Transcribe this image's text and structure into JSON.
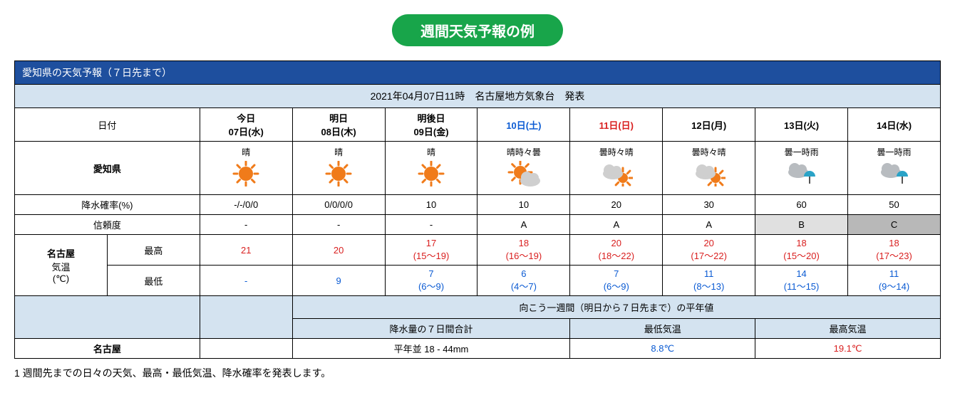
{
  "colors": {
    "title_bg": "#18a54a",
    "table_header_bg": "#1e4f9e",
    "light_bg": "#d4e3f0",
    "sat": "#0b5bd3",
    "sun_red": "#d92020",
    "high_red": "#d92020",
    "low_blue": "#0b5bd3",
    "conf_b_bg": "#e0e0e0",
    "conf_c_bg": "#b8b8b8",
    "sun_color": "#f07b1a",
    "cloud_color": "#cfcfcf",
    "cloud_dark": "#b8bcc0",
    "umb_color": "#2aa3c7"
  },
  "title": "週間天気予報の例",
  "header_bar": "愛知県の天気予報（７日先まで）",
  "issued": "2021年04月07日11時　名古屋地方気象台　発表",
  "labels": {
    "date": "日付",
    "region": "愛知県",
    "pop": "降水確率(%)",
    "conf": "信頼度",
    "city": "名古屋",
    "temp": "気温",
    "unit": "(℃)",
    "high": "最高",
    "low": "最低",
    "normals_title": "向こう一週間（明日から７日先まで）の平年値",
    "rain7_label": "降水量の７日間合計",
    "norm_low_label": "最低気温",
    "norm_high_label": "最高気温",
    "norm_city": "名古屋"
  },
  "days": [
    {
      "label_top": "今日",
      "label_bot": "07日(水)",
      "daytype": "wd",
      "icon": "sun",
      "weather": "晴",
      "pop": "-/-/0/0",
      "conf": "-",
      "high": "21",
      "high_range": "",
      "low": "-",
      "low_range": ""
    },
    {
      "label_top": "明日",
      "label_bot": "08日(木)",
      "daytype": "wd",
      "icon": "sun",
      "weather": "晴",
      "pop": "0/0/0/0",
      "conf": "-",
      "high": "20",
      "high_range": "",
      "low": "9",
      "low_range": ""
    },
    {
      "label_top": "明後日",
      "label_bot": "09日(金)",
      "daytype": "wd",
      "icon": "sun",
      "weather": "晴",
      "pop": "10",
      "conf": "-",
      "high": "17",
      "high_range": "(15～19)",
      "low": "7",
      "low_range": "(6～9)"
    },
    {
      "label_top": "",
      "label_bot": "10日(土)",
      "daytype": "sat",
      "icon": "sun_cloud",
      "weather": "晴時々曇",
      "pop": "10",
      "conf": "A",
      "high": "18",
      "high_range": "(16～19)",
      "low": "6",
      "low_range": "(4～7)"
    },
    {
      "label_top": "",
      "label_bot": "11日(日)",
      "daytype": "sun",
      "icon": "cloud_sun",
      "weather": "曇時々晴",
      "pop": "20",
      "conf": "A",
      "high": "20",
      "high_range": "(18～22)",
      "low": "7",
      "low_range": "(6～9)"
    },
    {
      "label_top": "",
      "label_bot": "12日(月)",
      "daytype": "wd",
      "icon": "cloud_sun",
      "weather": "曇時々晴",
      "pop": "30",
      "conf": "A",
      "high": "20",
      "high_range": "(17～22)",
      "low": "11",
      "low_range": "(8～13)"
    },
    {
      "label_top": "",
      "label_bot": "13日(火)",
      "daytype": "wd",
      "icon": "cloud_rain",
      "weather": "曇一時雨",
      "pop": "60",
      "conf": "B",
      "high": "18",
      "high_range": "(15～20)",
      "low": "14",
      "low_range": "(11～15)"
    },
    {
      "label_top": "",
      "label_bot": "14日(水)",
      "daytype": "wd",
      "icon": "cloud_rain",
      "weather": "曇一時雨",
      "pop": "50",
      "conf": "C",
      "high": "18",
      "high_range": "(17～23)",
      "low": "11",
      "low_range": "(9～14)"
    }
  ],
  "normals": {
    "rain7": "平年並 18 - 44mm",
    "low": "8.8℃",
    "high": "19.1℃"
  },
  "footnote": "1 週間先までの日々の天気、最高・最低気温、降水確率を発表します。"
}
